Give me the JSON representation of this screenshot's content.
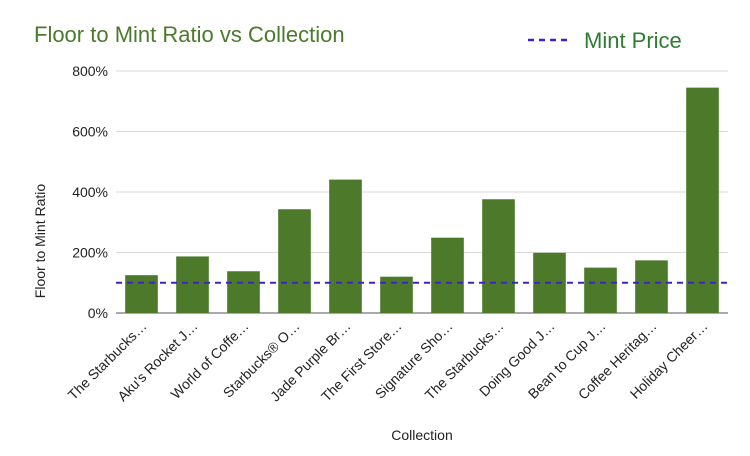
{
  "chart_data": {
    "type": "bar",
    "title": "Floor to Mint Ratio vs Collection",
    "xlabel": "Collection",
    "ylabel": "Floor to Mint Ratio",
    "ylim": [
      0,
      800
    ],
    "yticks": [
      0,
      200,
      400,
      600,
      800
    ],
    "ytick_labels": [
      "0%",
      "200%",
      "400%",
      "600%",
      "800%"
    ],
    "categories": [
      "The Starbucks…",
      "Aku's Rocket J…",
      "World of Coffe…",
      "Starbucks® O…",
      "Jade Purple Br…",
      "The First Store…",
      "Signature Sho…",
      "The Starbucks…",
      "Doing Good J…",
      "Bean to Cup J…",
      "Coffee Heritag…",
      "Holiday Cheer…"
    ],
    "series": [
      {
        "values": [
          125,
          187,
          138,
          343,
          441,
          120,
          249,
          376,
          199,
          150,
          174,
          745
        ],
        "color": "#4d7a2a"
      }
    ],
    "reference_line": {
      "name": "Mint Price",
      "value": 100,
      "color": "#3d22cc",
      "style": "dashed"
    },
    "legend": {
      "position": "top-right",
      "entries": [
        "Mint Price"
      ]
    },
    "grid": true
  }
}
